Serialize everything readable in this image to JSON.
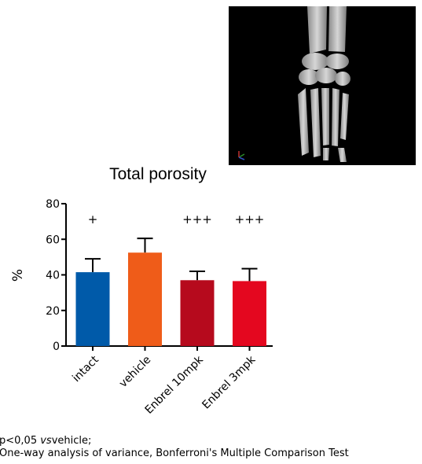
{
  "image": {
    "icon": "ct-scan-paw-bones-image",
    "background": "#000000",
    "bone_color": "#bdbdbd"
  },
  "chart_data": {
    "type": "bar",
    "title": "Total porosity",
    "ylabel": "%",
    "xlabel": "",
    "categories": [
      "intact",
      "vehicle",
      "Enbrel 10mpk",
      "Enbrel 3mpk"
    ],
    "values": [
      41.5,
      52.5,
      37,
      36.5
    ],
    "error_upper": [
      49,
      60.5,
      42,
      43.5
    ],
    "significance": [
      "+",
      "",
      "+++",
      "+++"
    ],
    "colors": [
      "#005aa9",
      "#ef5c19",
      "#b60a1d",
      "#e4071f"
    ],
    "ylim": [
      0,
      80
    ],
    "yticks": [
      0,
      20,
      40,
      60,
      80
    ],
    "grid": false,
    "legend": "none"
  },
  "footnotes": {
    "line1_prefix": "p<0,05",
    "line1_italic": "vs",
    "line1_suffix": "vehicle;",
    "line2": "One-way analysis of variance, Bonferroni's Multiple Comparison Test"
  }
}
